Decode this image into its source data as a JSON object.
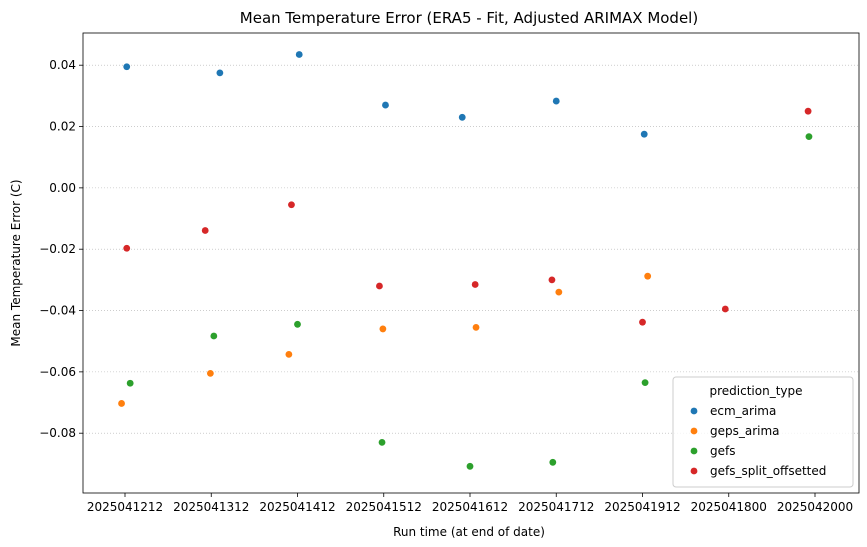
{
  "chart_data": {
    "type": "scatter",
    "title": "Mean Temperature Error (ERA5 - Fit, Adjusted ARIMAX Model)",
    "xlabel": "Run time (at end of date)",
    "ylabel": "Mean Temperature Error (C)",
    "categories": [
      "2025041212",
      "2025041312",
      "2025041412",
      "2025041512",
      "2025041612",
      "2025041712",
      "2025041912",
      "2025041800",
      "2025042000"
    ],
    "yticks": [
      "0.04",
      "0.02",
      "0.00",
      "−0.02",
      "−0.04",
      "−0.06",
      "−0.08"
    ],
    "ylim": [
      -0.0995,
      0.0505
    ],
    "grid": "y-dotted",
    "legend": {
      "title": "prediction_type",
      "placement": "lower-right"
    },
    "series": [
      {
        "name": "ecm_arima",
        "color": "#1f77b4",
        "points": [
          {
            "x": 0,
            "jitter": 0.02,
            "y": 0.0395
          },
          {
            "x": 1,
            "jitter": 0.1,
            "y": 0.0375
          },
          {
            "x": 2,
            "jitter": 0.02,
            "y": 0.0435
          },
          {
            "x": 3,
            "jitter": 0.02,
            "y": 0.027
          },
          {
            "x": 4,
            "jitter": -0.09,
            "y": 0.023
          },
          {
            "x": 5,
            "jitter": 0.0,
            "y": 0.0283
          },
          {
            "x": 6,
            "jitter": 0.02,
            "y": 0.0175
          }
        ]
      },
      {
        "name": "geps_arima",
        "color": "#ff7f0e",
        "points": [
          {
            "x": 0,
            "jitter": -0.04,
            "y": -0.0703
          },
          {
            "x": 1,
            "jitter": -0.01,
            "y": -0.0605
          },
          {
            "x": 2,
            "jitter": -0.1,
            "y": -0.0543
          },
          {
            "x": 3,
            "jitter": -0.01,
            "y": -0.046
          },
          {
            "x": 4,
            "jitter": 0.07,
            "y": -0.0455
          },
          {
            "x": 5,
            "jitter": 0.03,
            "y": -0.034
          },
          {
            "x": 6,
            "jitter": 0.06,
            "y": -0.0288
          }
        ]
      },
      {
        "name": "gefs",
        "color": "#2ca02c",
        "points": [
          {
            "x": 0,
            "jitter": 0.06,
            "y": -0.0637
          },
          {
            "x": 1,
            "jitter": 0.03,
            "y": -0.0483
          },
          {
            "x": 2,
            "jitter": 0.0,
            "y": -0.0445
          },
          {
            "x": 3,
            "jitter": -0.02,
            "y": -0.083
          },
          {
            "x": 4,
            "jitter": 0.0,
            "y": -0.0908
          },
          {
            "x": 5,
            "jitter": -0.04,
            "y": -0.0895
          },
          {
            "x": 6,
            "jitter": 0.03,
            "y": -0.0635
          },
          {
            "x": 8,
            "jitter": -0.07,
            "y": 0.0167
          }
        ]
      },
      {
        "name": "gefs_split_offsetted",
        "color": "#d62728",
        "points": [
          {
            "x": 0,
            "jitter": 0.02,
            "y": -0.0197
          },
          {
            "x": 1,
            "jitter": -0.07,
            "y": -0.0139
          },
          {
            "x": 2,
            "jitter": -0.07,
            "y": -0.0055
          },
          {
            "x": 3,
            "jitter": -0.05,
            "y": -0.032
          },
          {
            "x": 4,
            "jitter": 0.06,
            "y": -0.0315
          },
          {
            "x": 5,
            "jitter": -0.05,
            "y": -0.03
          },
          {
            "x": 6,
            "jitter": 0.0,
            "y": -0.0438
          },
          {
            "x": 7,
            "jitter": -0.04,
            "y": -0.0395
          },
          {
            "x": 8,
            "jitter": -0.08,
            "y": 0.025
          }
        ]
      }
    ]
  }
}
